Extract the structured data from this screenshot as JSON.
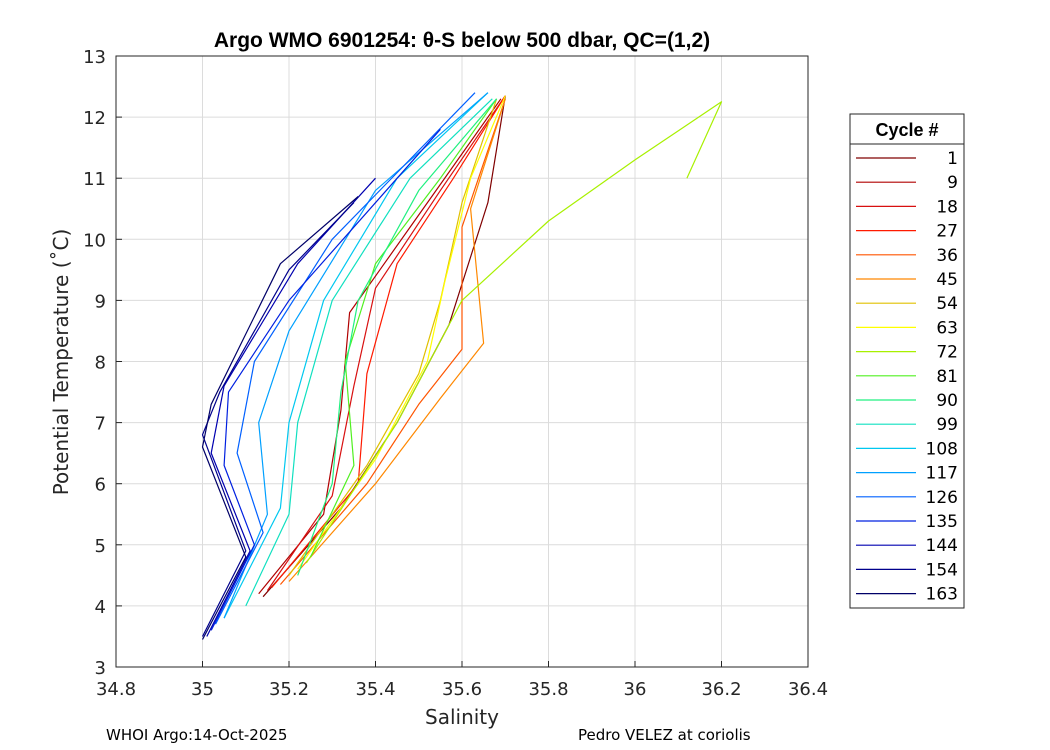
{
  "chart_data": {
    "type": "line",
    "title": "Argo WMO 6901254: θ-S below 500 dbar,  QC=(1,2)",
    "xlabel": "Salinity",
    "ylabel": "Potential Temperature (˚C)",
    "xlim": [
      34.8,
      36.4
    ],
    "ylim": [
      3,
      13
    ],
    "grid": true,
    "x_ticks": [
      "34.8",
      "35",
      "35.2",
      "35.4",
      "35.6",
      "35.8",
      "36",
      "36.2",
      "36.4"
    ],
    "y_ticks": [
      "3",
      "4",
      "5",
      "6",
      "7",
      "8",
      "9",
      "10",
      "11",
      "12",
      "13"
    ],
    "legend_title": "Cycle #",
    "legend_position": "right-outside",
    "series": [
      {
        "name": "1",
        "color": "#800000",
        "points": [
          [
            35.14,
            4.15
          ],
          [
            35.32,
            5.6
          ],
          [
            35.45,
            7.0
          ],
          [
            35.57,
            8.6
          ],
          [
            35.66,
            10.6
          ],
          [
            35.7,
            12.35
          ]
        ]
      },
      {
        "name": "9",
        "color": "#b00000",
        "points": [
          [
            35.13,
            4.2
          ],
          [
            35.28,
            5.5
          ],
          [
            35.32,
            7.2
          ],
          [
            35.34,
            8.8
          ],
          [
            35.5,
            10.4
          ],
          [
            35.69,
            12.3
          ]
        ]
      },
      {
        "name": "18",
        "color": "#d81010",
        "points": [
          [
            35.15,
            4.25
          ],
          [
            35.3,
            5.8
          ],
          [
            35.35,
            7.6
          ],
          [
            35.4,
            9.2
          ],
          [
            35.55,
            10.8
          ],
          [
            35.7,
            12.35
          ]
        ]
      },
      {
        "name": "27",
        "color": "#ff1a00",
        "points": [
          [
            35.16,
            4.3
          ],
          [
            35.36,
            6.0
          ],
          [
            35.38,
            7.8
          ],
          [
            35.45,
            9.6
          ],
          [
            35.58,
            11.0
          ],
          [
            35.7,
            12.35
          ]
        ]
      },
      {
        "name": "36",
        "color": "#ff5500",
        "points": [
          [
            35.18,
            4.35
          ],
          [
            35.38,
            6.0
          ],
          [
            35.5,
            7.3
          ],
          [
            35.6,
            8.2
          ],
          [
            35.6,
            10.2
          ],
          [
            35.7,
            12.3
          ]
        ]
      },
      {
        "name": "45",
        "color": "#ff8800",
        "points": [
          [
            35.2,
            4.4
          ],
          [
            35.4,
            6.0
          ],
          [
            35.55,
            7.4
          ],
          [
            35.65,
            8.3
          ],
          [
            35.62,
            10.5
          ],
          [
            35.7,
            12.3
          ]
        ]
      },
      {
        "name": "54",
        "color": "#e0c000",
        "points": [
          [
            35.2,
            4.5
          ],
          [
            35.38,
            6.3
          ],
          [
            35.5,
            7.8
          ],
          [
            35.55,
            9.0
          ],
          [
            35.6,
            10.6
          ],
          [
            35.68,
            12.3
          ]
        ]
      },
      {
        "name": "63",
        "color": "#ffff00",
        "points": [
          [
            35.22,
            4.6
          ],
          [
            35.4,
            6.4
          ],
          [
            35.52,
            8.0
          ],
          [
            35.56,
            9.3
          ],
          [
            35.62,
            11.0
          ],
          [
            35.7,
            12.35
          ]
        ]
      },
      {
        "name": "72",
        "color": "#a8f000",
        "points": [
          [
            35.24,
            4.7
          ],
          [
            35.45,
            7.0
          ],
          [
            35.6,
            9.0
          ],
          [
            35.8,
            10.3
          ],
          [
            36.0,
            11.3
          ],
          [
            36.2,
            12.25
          ],
          [
            36.12,
            11.0
          ]
        ]
      },
      {
        "name": "81",
        "color": "#50f020",
        "points": [
          [
            35.25,
            4.8
          ],
          [
            35.35,
            6.3
          ],
          [
            35.33,
            8.0
          ],
          [
            35.4,
            9.6
          ],
          [
            35.55,
            11.0
          ],
          [
            35.68,
            12.3
          ]
        ]
      },
      {
        "name": "90",
        "color": "#20f080",
        "points": [
          [
            35.22,
            4.5
          ],
          [
            35.3,
            6.0
          ],
          [
            35.32,
            7.5
          ],
          [
            35.36,
            9.0
          ],
          [
            35.5,
            10.8
          ],
          [
            35.68,
            12.3
          ]
        ]
      },
      {
        "name": "99",
        "color": "#10e0c0",
        "points": [
          [
            35.1,
            4.0
          ],
          [
            35.2,
            5.5
          ],
          [
            35.22,
            7.0
          ],
          [
            35.3,
            9.0
          ],
          [
            35.48,
            11.0
          ],
          [
            35.67,
            12.3
          ]
        ]
      },
      {
        "name": "108",
        "color": "#00c8f0",
        "points": [
          [
            35.05,
            3.8
          ],
          [
            35.18,
            5.6
          ],
          [
            35.2,
            7.0
          ],
          [
            35.28,
            9.0
          ],
          [
            35.45,
            11.0
          ],
          [
            35.66,
            12.4
          ]
        ]
      },
      {
        "name": "117",
        "color": "#00a0ff",
        "points": [
          [
            35.05,
            3.8
          ],
          [
            35.15,
            5.5
          ],
          [
            35.13,
            7.0
          ],
          [
            35.2,
            8.5
          ],
          [
            35.4,
            10.8
          ],
          [
            35.66,
            12.4
          ]
        ]
      },
      {
        "name": "126",
        "color": "#0060ff",
        "points": [
          [
            35.03,
            3.7
          ],
          [
            35.14,
            5.2
          ],
          [
            35.08,
            6.5
          ],
          [
            35.12,
            8.0
          ],
          [
            35.3,
            10.0
          ],
          [
            35.63,
            12.4
          ]
        ]
      },
      {
        "name": "135",
        "color": "#0020e0",
        "points": [
          [
            35.02,
            3.6
          ],
          [
            35.12,
            5.0
          ],
          [
            35.05,
            6.3
          ],
          [
            35.06,
            7.5
          ],
          [
            35.2,
            9.0
          ],
          [
            35.55,
            11.8
          ]
        ]
      },
      {
        "name": "144",
        "color": "#0000b0",
        "points": [
          [
            35.01,
            3.5
          ],
          [
            35.11,
            4.9
          ],
          [
            35.02,
            6.5
          ],
          [
            35.05,
            7.6
          ],
          [
            35.22,
            9.6
          ],
          [
            35.4,
            11.0
          ]
        ]
      },
      {
        "name": "154",
        "color": "#00008c",
        "points": [
          [
            35.0,
            3.5
          ],
          [
            35.1,
            4.9
          ],
          [
            35.0,
            6.8
          ],
          [
            35.04,
            7.5
          ],
          [
            35.2,
            9.5
          ],
          [
            35.35,
            10.6
          ]
        ]
      },
      {
        "name": "163",
        "color": "#000068",
        "points": [
          [
            35.0,
            3.45
          ],
          [
            35.1,
            4.8
          ],
          [
            35.0,
            6.6
          ],
          [
            35.02,
            7.3
          ],
          [
            35.18,
            9.6
          ],
          [
            35.36,
            10.7
          ]
        ]
      }
    ]
  },
  "footer": {
    "left": "WHOI Argo:14-Oct-2025",
    "right": "Pedro VELEZ at coriolis"
  }
}
